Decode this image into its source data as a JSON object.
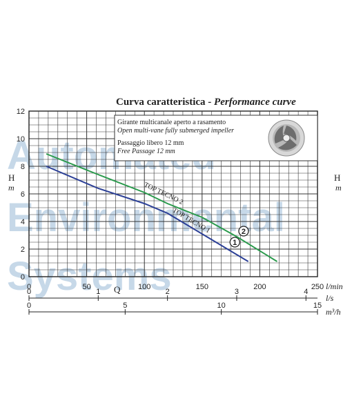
{
  "chart_data": {
    "type": "line",
    "title": "Curva caratteristica - ",
    "title_italic": "Performance curve",
    "notes": [
      {
        "text": "Girante multicanale aperto a rasamento",
        "italic": false
      },
      {
        "text": "Open multi-vane fully submerged impeller",
        "italic": true
      },
      {
        "text": "Passaggio libero 12 mm",
        "italic": false
      },
      {
        "text": "Free Passage 12 mm",
        "italic": true
      }
    ],
    "ylabel": "H",
    "ylabel_unit": "m",
    "xlabel": "Q",
    "ylim": [
      0,
      12
    ],
    "y_ticks": [
      0,
      2,
      4,
      6,
      8,
      10,
      12
    ],
    "x_axes": [
      {
        "unit": "l/min",
        "range": [
          0,
          250
        ],
        "ticks": [
          0,
          50,
          100,
          150,
          200,
          250
        ]
      },
      {
        "unit": "l/s",
        "range": [
          0,
          4.1667
        ],
        "ticks": [
          0,
          1,
          2,
          3,
          4
        ]
      },
      {
        "unit": "m³/h",
        "range": [
          0,
          15
        ],
        "ticks": [
          0,
          5,
          10,
          15
        ]
      }
    ],
    "grid": true,
    "series": [
      {
        "name": "TOP TECNO 1",
        "marker": "1",
        "color": "#2b3f96",
        "x": [
          15,
          60,
          100,
          120,
          150,
          170,
          190
        ],
        "y": [
          8,
          6.4,
          5.3,
          4.6,
          3.1,
          2.1,
          1.1
        ]
      },
      {
        "name": "TOP TECNO 2",
        "marker": "2",
        "color": "#2a9a4c",
        "x": [
          15,
          60,
          100,
          120,
          150,
          180,
          215
        ],
        "y": [
          8.9,
          7.4,
          6.1,
          5.3,
          4.3,
          2.9,
          1.1
        ]
      }
    ]
  },
  "watermark": [
    "Automated",
    "Environmental",
    "Systems"
  ]
}
